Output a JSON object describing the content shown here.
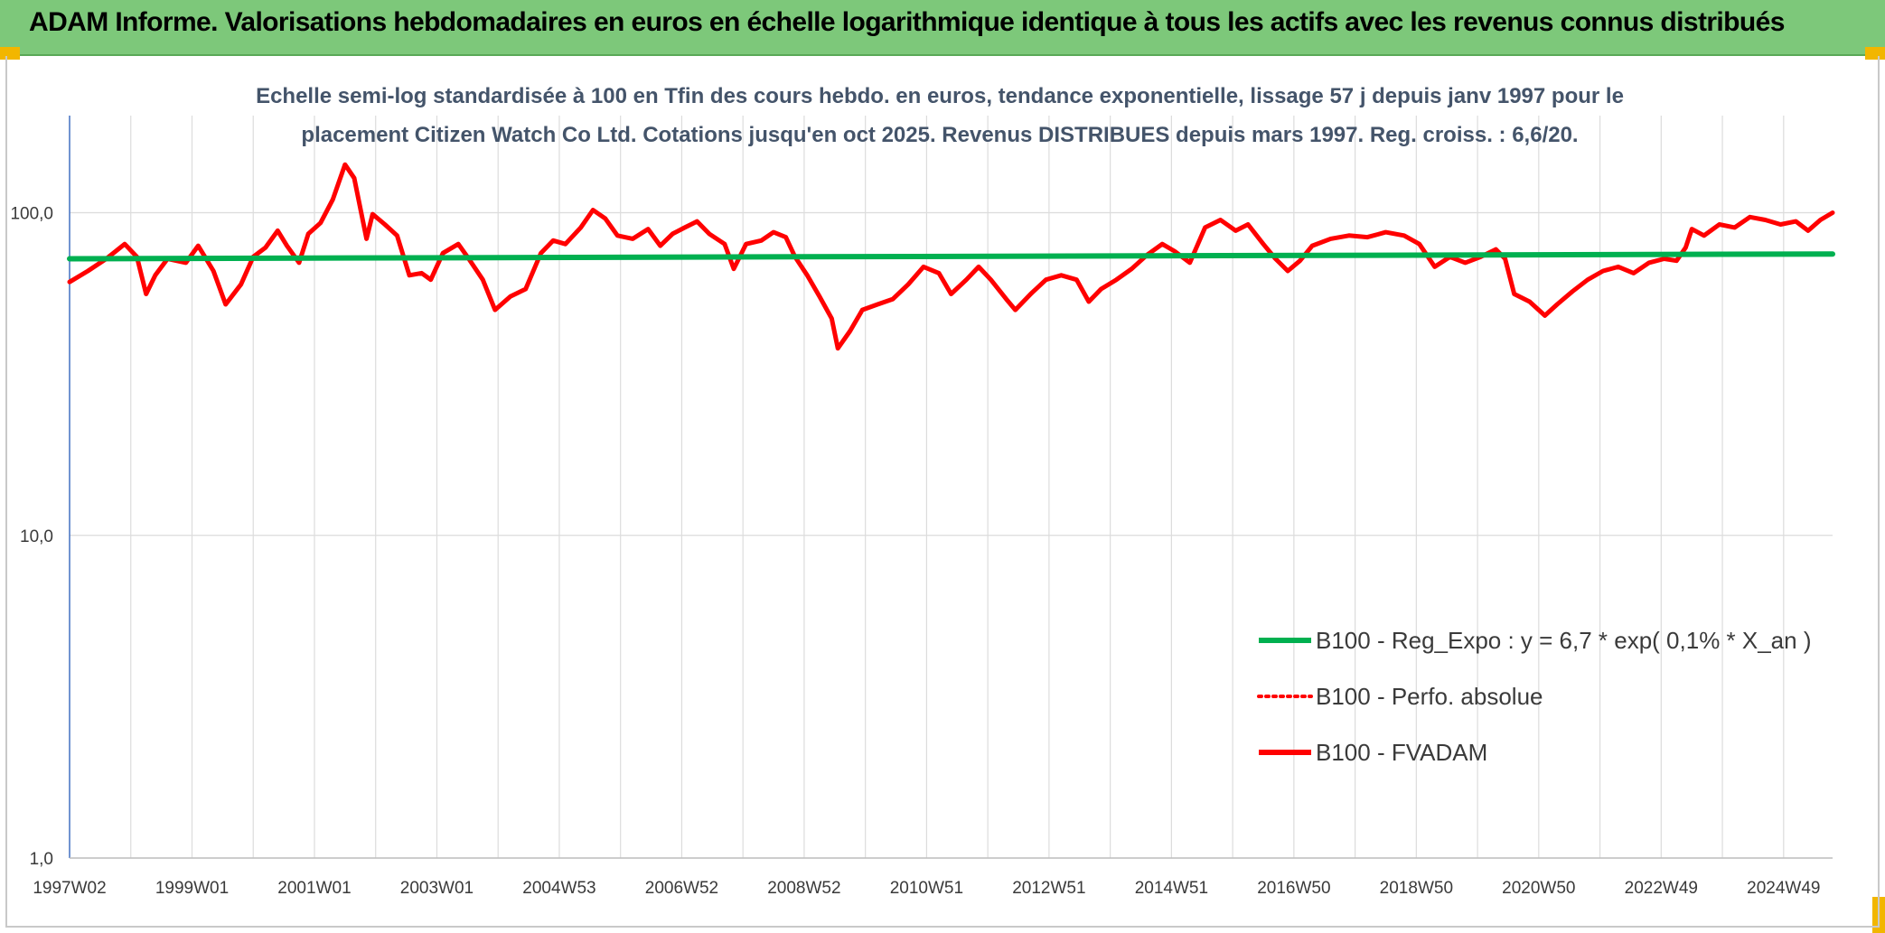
{
  "header": {
    "title": "ADAM Informe. Valorisations hebdomadaires en euros en échelle logarithmique identique à tous les actifs avec les revenus connus distribués"
  },
  "colors": {
    "banner": "#7dc87a",
    "fvadam": "#ff0000",
    "perfo": "#ff0000",
    "regression": "#00b050",
    "grid": "#dcdcdc",
    "axis": "#4472c4",
    "corner": "#f2b600"
  },
  "chart_data": {
    "type": "line",
    "subtitle_lines": [
      "Echelle semi-log standardisée à 100 en Tfin des cours hebdo. en euros, tendance exponentielle, lissage 57 j depuis janv 1997 pour le",
      "placement Citizen Watch Co Ltd. Cotations jusqu'en oct 2025. Revenus DISTRIBUES depuis mars 1997. Reg. croiss. : 6,6/20."
    ],
    "y_scale": "log",
    "ylim": [
      1,
      200
    ],
    "y_ticks": [
      {
        "value": 1,
        "label": "1,0"
      },
      {
        "value": 10,
        "label": "10,0"
      },
      {
        "value": 100,
        "label": "100,0"
      }
    ],
    "xlim": [
      1997.0,
      2025.8
    ],
    "x_ticks": [
      {
        "year": 1997.0,
        "label": "1997W02"
      },
      {
        "year": 1999.0,
        "label": "1999W01"
      },
      {
        "year": 2001.0,
        "label": "2001W01"
      },
      {
        "year": 2003.0,
        "label": "2003W01"
      },
      {
        "year": 2005.0,
        "label": "2004W53"
      },
      {
        "year": 2007.0,
        "label": "2006W52"
      },
      {
        "year": 2009.0,
        "label": "2008W52"
      },
      {
        "year": 2011.0,
        "label": "2010W51"
      },
      {
        "year": 2013.0,
        "label": "2012W51"
      },
      {
        "year": 2015.0,
        "label": "2014W51"
      },
      {
        "year": 2017.0,
        "label": "2016W50"
      },
      {
        "year": 2019.0,
        "label": "2018W50"
      },
      {
        "year": 2021.0,
        "label": "2020W50"
      },
      {
        "year": 2023.0,
        "label": "2022W49"
      },
      {
        "year": 2025.0,
        "label": "2024W49"
      }
    ],
    "legend": [
      {
        "key": "regression",
        "label": "B100 - Reg_Expo : y = 6,7 * exp( 0,1% *  X_an )",
        "style": "solid"
      },
      {
        "key": "perfo",
        "label": "B100 - Perfo. absolue",
        "style": "dotted"
      },
      {
        "key": "fvadam",
        "label": "B100 - FVADAM",
        "style": "solid"
      }
    ],
    "legend_position": "bottom-right",
    "series": [
      {
        "key": "fvadam",
        "name": "B100 - FVADAM",
        "points": [
          [
            1997.0,
            61
          ],
          [
            1997.3,
            66
          ],
          [
            1997.6,
            72
          ],
          [
            1997.9,
            80
          ],
          [
            1998.1,
            73
          ],
          [
            1998.25,
            56
          ],
          [
            1998.4,
            64
          ],
          [
            1998.6,
            72
          ],
          [
            1998.9,
            70
          ],
          [
            1999.1,
            79
          ],
          [
            1999.35,
            66
          ],
          [
            1999.55,
            52
          ],
          [
            1999.8,
            60
          ],
          [
            2000.0,
            73
          ],
          [
            2000.2,
            78
          ],
          [
            2000.4,
            88
          ],
          [
            2000.55,
            79
          ],
          [
            2000.75,
            70
          ],
          [
            2000.9,
            86
          ],
          [
            2001.1,
            93
          ],
          [
            2001.3,
            110
          ],
          [
            2001.5,
            141
          ],
          [
            2001.65,
            128
          ],
          [
            2001.85,
            83
          ],
          [
            2001.95,
            99
          ],
          [
            2002.15,
            92
          ],
          [
            2002.35,
            85
          ],
          [
            2002.55,
            64
          ],
          [
            2002.75,
            65
          ],
          [
            2002.9,
            62
          ],
          [
            2003.1,
            75
          ],
          [
            2003.35,
            80
          ],
          [
            2003.5,
            73
          ],
          [
            2003.75,
            62
          ],
          [
            2003.95,
            50
          ],
          [
            2004.2,
            55
          ],
          [
            2004.45,
            58
          ],
          [
            2004.7,
            75
          ],
          [
            2004.9,
            82
          ],
          [
            2005.1,
            80
          ],
          [
            2005.35,
            90
          ],
          [
            2005.55,
            102
          ],
          [
            2005.75,
            96
          ],
          [
            2005.95,
            85
          ],
          [
            2006.2,
            83
          ],
          [
            2006.45,
            89
          ],
          [
            2006.65,
            79
          ],
          [
            2006.85,
            86
          ],
          [
            2007.05,
            90
          ],
          [
            2007.25,
            94
          ],
          [
            2007.45,
            86
          ],
          [
            2007.7,
            80
          ],
          [
            2007.85,
            67
          ],
          [
            2008.05,
            80
          ],
          [
            2008.3,
            82
          ],
          [
            2008.5,
            87
          ],
          [
            2008.7,
            84
          ],
          [
            2008.85,
            73
          ],
          [
            2009.05,
            64
          ],
          [
            2009.25,
            55
          ],
          [
            2009.45,
            47
          ],
          [
            2009.55,
            38
          ],
          [
            2009.75,
            43
          ],
          [
            2009.95,
            50
          ],
          [
            2010.2,
            52
          ],
          [
            2010.45,
            54
          ],
          [
            2010.7,
            60
          ],
          [
            2010.95,
            68
          ],
          [
            2011.2,
            65
          ],
          [
            2011.4,
            56
          ],
          [
            2011.65,
            62
          ],
          [
            2011.85,
            68
          ],
          [
            2012.05,
            62
          ],
          [
            2012.3,
            54
          ],
          [
            2012.45,
            50
          ],
          [
            2012.7,
            56
          ],
          [
            2012.95,
            62
          ],
          [
            2013.2,
            64
          ],
          [
            2013.45,
            62
          ],
          [
            2013.65,
            53
          ],
          [
            2013.85,
            58
          ],
          [
            2014.1,
            62
          ],
          [
            2014.35,
            67
          ],
          [
            2014.6,
            74
          ],
          [
            2014.85,
            80
          ],
          [
            2015.05,
            76
          ],
          [
            2015.3,
            70
          ],
          [
            2015.55,
            90
          ],
          [
            2015.8,
            95
          ],
          [
            2016.05,
            88
          ],
          [
            2016.25,
            92
          ],
          [
            2016.5,
            80
          ],
          [
            2016.7,
            72
          ],
          [
            2016.9,
            66
          ],
          [
            2017.1,
            71
          ],
          [
            2017.3,
            79
          ],
          [
            2017.6,
            83
          ],
          [
            2017.9,
            85
          ],
          [
            2018.2,
            84
          ],
          [
            2018.5,
            87
          ],
          [
            2018.8,
            85
          ],
          [
            2019.05,
            80
          ],
          [
            2019.3,
            68
          ],
          [
            2019.55,
            73
          ],
          [
            2019.8,
            70
          ],
          [
            2020.05,
            73
          ],
          [
            2020.3,
            77
          ],
          [
            2020.45,
            72
          ],
          [
            2020.6,
            56
          ],
          [
            2020.85,
            53
          ],
          [
            2021.1,
            48
          ],
          [
            2021.3,
            52
          ],
          [
            2021.55,
            57
          ],
          [
            2021.8,
            62
          ],
          [
            2022.05,
            66
          ],
          [
            2022.3,
            68
          ],
          [
            2022.55,
            65
          ],
          [
            2022.8,
            70
          ],
          [
            2023.05,
            72
          ],
          [
            2023.25,
            71
          ],
          [
            2023.4,
            78
          ],
          [
            2023.5,
            89
          ],
          [
            2023.7,
            85
          ],
          [
            2023.95,
            92
          ],
          [
            2024.2,
            90
          ],
          [
            2024.45,
            97
          ],
          [
            2024.7,
            95
          ],
          [
            2024.95,
            92
          ],
          [
            2025.2,
            94
          ],
          [
            2025.4,
            88
          ],
          [
            2025.6,
            95
          ],
          [
            2025.8,
            100
          ]
        ]
      },
      {
        "key": "regression",
        "name": "B100 - Reg_Expo : y = 6,7 * exp( 0,1% *  X_an )",
        "points": [
          [
            1997.0,
            72.0
          ],
          [
            2025.8,
            74.5
          ]
        ]
      }
    ]
  }
}
